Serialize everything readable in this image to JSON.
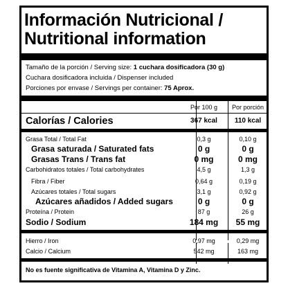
{
  "title": {
    "line1": "Información Nutricional /",
    "line2": "Nutritional information"
  },
  "serving": {
    "size_label": "Tamaño de la porción / Serving size: ",
    "size_value": "1 cuchara dosificadora (30 g)",
    "dispenser": "Cuchara dosificadora incluida / Dispenser included",
    "per_container_label": "Porciones por envase / Servings per container: ",
    "per_container_value": "75 Aprox."
  },
  "columns": {
    "per100": "Por 100 g",
    "perServing": "Por porción"
  },
  "calories": {
    "label": "Calorías / Calories",
    "per100": "367 kcal",
    "perServing": "110 kcal"
  },
  "nutrients": [
    {
      "label": "Grasa Total / Total Fat",
      "per100": "0,3 g",
      "perServing": "0,10 g"
    },
    {
      "label": "Grasa saturada / Saturated fats",
      "per100": "0 g",
      "perServing": "0 g"
    },
    {
      "label": "Grasas Trans / Trans fat",
      "per100": "0 mg",
      "perServing": "0 mg"
    },
    {
      "label": "Carbohidratos totales / Total carbohydrates",
      "per100": "4,5 g",
      "perServing": "1,3 g"
    },
    {
      "label": "Fibra / Fiber",
      "per100": "0,64 g",
      "perServing": "0,19 g"
    },
    {
      "label": "Azúcares totales / Total sugars",
      "per100": "3,1 g",
      "perServing": "0,92 g"
    },
    {
      "label": "Azúcares añadidos / Added sugars",
      "per100": "0 g",
      "perServing": "0 g"
    },
    {
      "label": "Proteína / Protein",
      "per100": "87 g",
      "perServing": "26 g"
    },
    {
      "label": "Sodio / Sodium",
      "per100": "184 mg",
      "perServing": "55 mg"
    }
  ],
  "minerals": [
    {
      "label": "Hierro / Iron",
      "per100": "0,97 mg",
      "perServing": "0,29 mg"
    },
    {
      "label": "Calcio / Calcium",
      "per100": "542 mg",
      "perServing": "163 mg"
    }
  ],
  "footnote": "No es fuente significativa de Vitamina A, Vitamina D y Zinc."
}
